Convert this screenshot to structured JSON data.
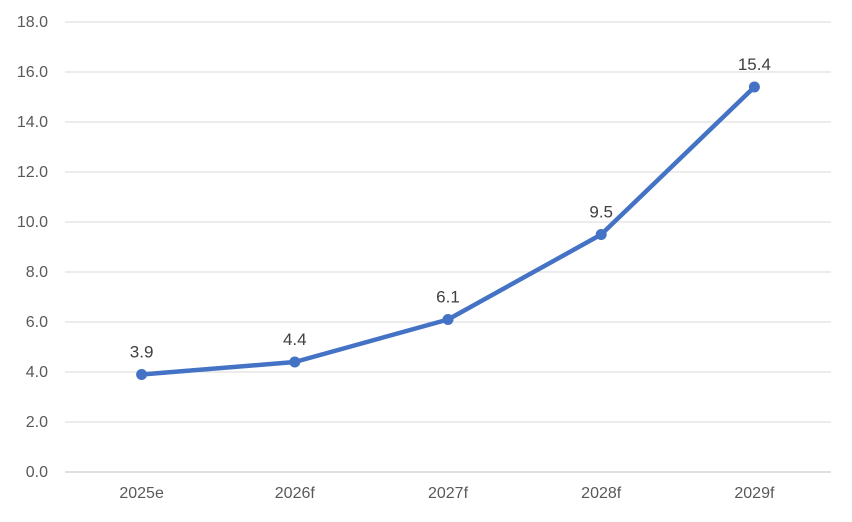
{
  "chart_data": {
    "type": "line",
    "title": "",
    "xlabel": "",
    "ylabel": "",
    "categories": [
      "2025e",
      "2026f",
      "2027f",
      "2028f",
      "2029f"
    ],
    "series": [
      {
        "name": "",
        "values": [
          3.9,
          4.4,
          6.1,
          9.5,
          15.4
        ],
        "data_labels": [
          "3.9",
          "4.4",
          "6.1",
          "9.5",
          "15.4"
        ]
      }
    ],
    "ylim": [
      0,
      18
    ],
    "y_tick_step": 2,
    "y_tick_labels": [
      "0.0",
      "2.0",
      "4.0",
      "6.0",
      "8.0",
      "10.0",
      "12.0",
      "14.0",
      "16.0",
      "18.0"
    ],
    "grid": true,
    "legend_position": "none",
    "colors": {
      "line": "#4472C4",
      "marker": "#4472C4",
      "gridline": "#D9D9D9",
      "axis_line": "#BFBFBF",
      "tick_label": "#595959",
      "data_label": "#404040",
      "background": "#FFFFFF"
    }
  }
}
